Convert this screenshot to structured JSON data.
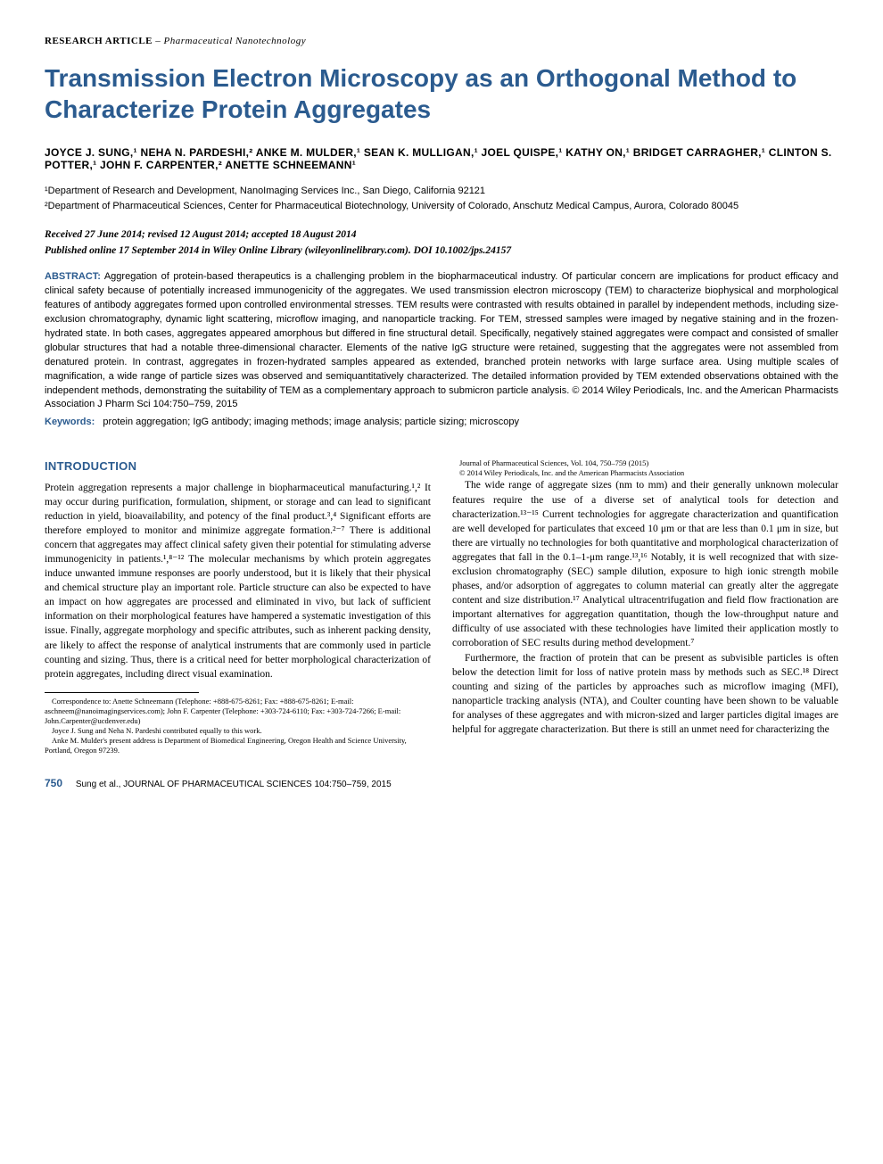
{
  "header": {
    "article_type_label": "RESEARCH ARTICLE",
    "article_type_category": "– Pharmaceutical Nanotechnology"
  },
  "title": "Transmission Electron Microscopy as an Orthogonal Method to Characterize Protein Aggregates",
  "authors_line": "JOYCE J. SUNG,¹ NEHA N. PARDESHI,² ANKE M. MULDER,¹ SEAN K. MULLIGAN,¹ JOEL QUISPE,¹ KATHY ON,¹ BRIDGET CARRAGHER,¹ CLINTON S. POTTER,¹ JOHN F. CARPENTER,² ANETTE SCHNEEMANN¹",
  "affiliations": {
    "aff1": "¹Department of Research and Development, NanoImaging Services Inc., San Diego, California 92121",
    "aff2": "²Department of Pharmaceutical Sciences, Center for Pharmaceutical Biotechnology, University of Colorado, Anschutz Medical Campus, Aurora, Colorado 80045"
  },
  "dates": "Received 27 June 2014; revised 12 August 2014; accepted 18 August 2014",
  "pub_online": "Published online 17 September 2014 in Wiley Online Library (wileyonlinelibrary.com). DOI 10.1002/jps.24157",
  "abstract": {
    "label": "ABSTRACT:",
    "text": "Aggregation of protein-based therapeutics is a challenging problem in the biopharmaceutical industry. Of particular concern are implications for product efficacy and clinical safety because of potentially increased immunogenicity of the aggregates. We used transmission electron microscopy (TEM) to characterize biophysical and morphological features of antibody aggregates formed upon controlled environmental stresses. TEM results were contrasted with results obtained in parallel by independent methods, including size-exclusion chromatography, dynamic light scattering, microflow imaging, and nanoparticle tracking. For TEM, stressed samples were imaged by negative staining and in the frozen-hydrated state. In both cases, aggregates appeared amorphous but differed in fine structural detail. Specifically, negatively stained aggregates were compact and consisted of smaller globular structures that had a notable three-dimensional character. Elements of the native IgG structure were retained, suggesting that the aggregates were not assembled from denatured protein. In contrast, aggregates in frozen-hydrated samples appeared as extended, branched protein networks with large surface area. Using multiple scales of magnification, a wide range of particle sizes was observed and semiquantitatively characterized. The detailed information provided by TEM extended observations obtained with the independent methods, demonstrating the suitability of TEM as a complementary approach to submicron particle analysis. © 2014 Wiley Periodicals, Inc. and the American Pharmacists Association J Pharm Sci 104:750–759, 2015"
  },
  "keywords": {
    "label": "Keywords:",
    "text": "protein aggregation; IgG antibody; imaging methods; image analysis; particle sizing; microscopy"
  },
  "intro": {
    "heading": "INTRODUCTION",
    "para1": "Protein aggregation represents a major challenge in biopharmaceutical manufacturing.¹,² It may occur during purification, formulation, shipment, or storage and can lead to significant reduction in yield, bioavailability, and potency of the final product.³,⁴ Significant efforts are therefore employed to monitor and minimize aggregate formation.²⁻⁷ There is additional concern that aggregates may affect clinical safety given their potential for stimulating adverse immunogenicity in patients.¹,⁸⁻¹² The molecular mechanisms by which protein aggregates induce unwanted immune responses are poorly understood, but it is likely that their physical and chemical structure play an important role. Particle structure can also be expected to have an impact on how aggregates are processed and eliminated in vivo, but lack of sufficient information on their morphological features have hampered a systematic investigation of this issue. Finally, aggregate morphology and specific attributes, such as inherent packing density, are likely to affect the response of analytical instruments that are commonly used in particle counting and sizing. Thus, there is a critical need for better morphological characterization of protein aggregates, including direct visual examination.",
    "para2": "The wide range of aggregate sizes (nm to mm) and their generally unknown molecular features require the use of a diverse set of analytical tools for detection and characterization.¹³⁻¹⁵ Current technologies for aggregate characterization and quantification are well developed for particulates that exceed 10 μm or that are less than 0.1 μm in size, but there are virtually no technologies for both quantitative and morphological characterization of aggregates that fall in the 0.1–1-μm range.¹³,¹⁶ Notably, it is well recognized that with size-exclusion chromatography (SEC) sample dilution, exposure to high ionic strength mobile phases, and/or adsorption of aggregates to column material can greatly alter the aggregate content and size distribution.¹⁷ Analytical ultracentrifugation and field flow fractionation are important alternatives for aggregation quantitation, though the low-throughput nature and difficulty of use associated with these technologies have limited their application mostly to corroboration of SEC results during method development.⁷",
    "para3": "Furthermore, the fraction of protein that can be present as subvisible particles is often below the detection limit for loss of native protein mass by methods such as SEC.¹⁸ Direct counting and sizing of the particles by approaches such as microflow imaging (MFI), nanoparticle tracking analysis (NTA), and Coulter counting have been shown to be valuable for analyses of these aggregates and with micron-sized and larger particles digital images are helpful for aggregate characterization. But there is still an unmet need for characterizing the"
  },
  "footnotes": {
    "correspondence": "Correspondence to: Anette Schneemann (Telephone: +888-675-8261; Fax: +888-675-8261; E-mail: aschneem@nanoimagingservices.com); John F. Carpenter (Telephone: +303-724-6110; Fax: +303-724-7266; E-mail: John.Carpenter@ucdenver.edu)",
    "contrib": "Joyce J. Sung and Neha N. Pardeshi contributed equally to this work.",
    "present_address": "Anke M. Mulder's present address is Department of Biomedical Engineering, Oregon Health and Science University, Portland, Oregon 97239.",
    "journal": "Journal of Pharmaceutical Sciences, Vol. 104, 750–759 (2015)",
    "copyright": "© 2014 Wiley Periodicals, Inc. and the American Pharmacists Association"
  },
  "footer": {
    "page_number": "750",
    "citation": "Sung et al., JOURNAL OF PHARMACEUTICAL SCIENCES 104:750–759, 2015"
  },
  "colors": {
    "heading_blue": "#2b5b8f",
    "text_black": "#000000",
    "background": "#ffffff"
  },
  "typography": {
    "title_fontsize": 28,
    "body_fontsize": 11.5,
    "abstract_fontsize": 11,
    "footnote_fontsize": 8.5
  }
}
